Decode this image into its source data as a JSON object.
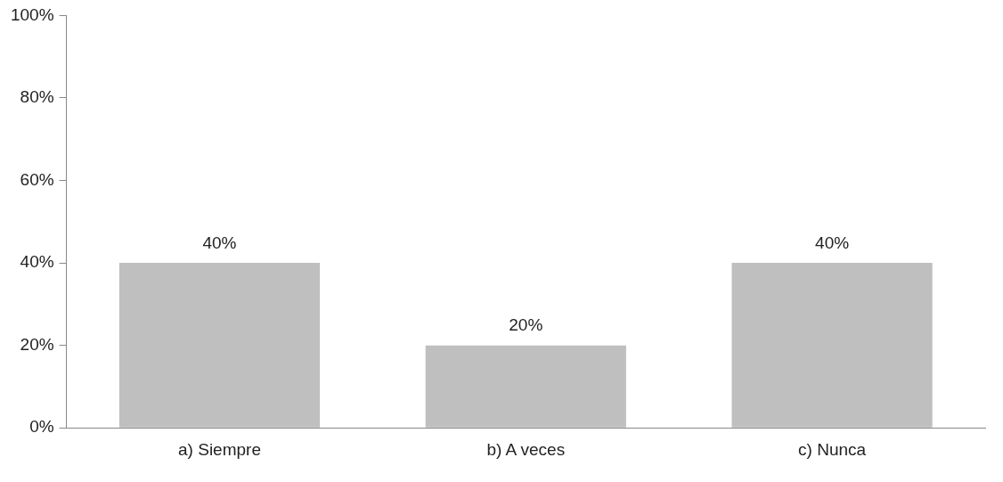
{
  "chart_data": {
    "type": "bar",
    "categories": [
      "a) Siempre",
      "b) A veces",
      "c) Nunca"
    ],
    "values": [
      40,
      20,
      40
    ],
    "color": "#bfbfbf",
    "value_labels": [
      "40%",
      "20%",
      "40%"
    ],
    "ylim": [
      0,
      100
    ],
    "yticks": [
      {
        "value": 0,
        "label": "0%"
      },
      {
        "value": 20,
        "label": "20%"
      },
      {
        "value": 40,
        "label": "40%"
      },
      {
        "value": 60,
        "label": "60%"
      },
      {
        "value": 80,
        "label": "80%"
      },
      {
        "value": 100,
        "label": "100%"
      }
    ],
    "grid": false,
    "legend": false
  }
}
